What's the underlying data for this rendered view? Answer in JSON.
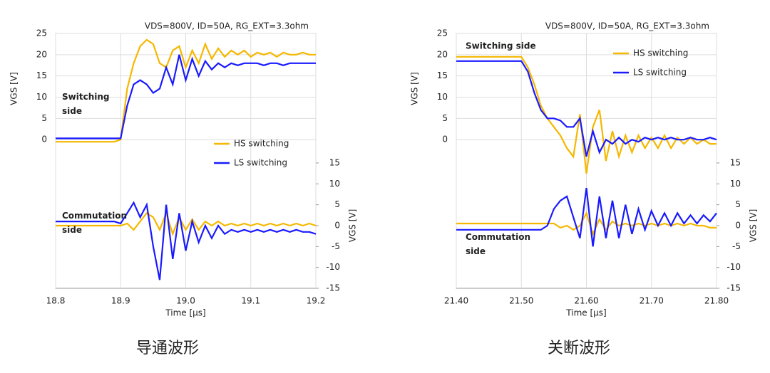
{
  "chart_data": [
    {
      "type": "line",
      "title": "VDS=800V, ID=50A, RG_EXT=3.3ohm",
      "x_label": "Time [µs]",
      "y_label": "VGS  [V]",
      "y2_label": "VGS  [V]",
      "caption": "导通波形",
      "annotations": [
        {
          "text": [
            "Switching",
            "side"
          ],
          "y": 10
        },
        {
          "text": [
            "Commutation",
            "side"
          ],
          "y": -18
        }
      ],
      "x": [
        18.8,
        18.81,
        18.82,
        18.83,
        18.84,
        18.85,
        18.86,
        18.87,
        18.88,
        18.89,
        18.9,
        18.91,
        18.92,
        18.93,
        18.94,
        18.95,
        18.96,
        18.97,
        18.98,
        18.99,
        19,
        19.01,
        19.02,
        19.03,
        19.04,
        19.05,
        19.06,
        19.07,
        19.08,
        19.09,
        19.1,
        19.11,
        19.12,
        19.13,
        19.14,
        19.15,
        19.16,
        19.17,
        19.18,
        19.19,
        19.2
      ],
      "xlim": [
        18.8,
        19.2
      ],
      "xticks": [
        18.8,
        18.9,
        {
          "value": 19,
          "label": "19.0"
        },
        19.1,
        19.2
      ],
      "ylim": [
        -35,
        25
      ],
      "yticks": [
        0,
        5,
        10,
        15,
        20,
        25
      ],
      "y2lim": [
        -15,
        46
      ],
      "y2ticks": [
        -15,
        -10,
        -5,
        0,
        5,
        10,
        15
      ],
      "grid": true,
      "series": [
        {
          "name": "HS switching",
          "color": "#f5b800",
          "values": [
            -0.5,
            -0.5,
            -0.5,
            -0.5,
            -0.5,
            -0.5,
            -0.5,
            -0.5,
            -0.5,
            -0.5,
            0,
            12,
            18,
            22,
            23.5,
            22.5,
            18,
            17,
            21,
            22,
            17,
            21,
            18,
            22.5,
            19,
            21.5,
            19.5,
            21,
            20,
            21,
            19.5,
            20.5,
            20,
            20.5,
            19.5,
            20.5,
            20,
            20,
            20.5,
            20,
            20
          ],
          "commutation_values": [
            0,
            0,
            0,
            0,
            0,
            0,
            0,
            0,
            0,
            0,
            0,
            0.5,
            -1,
            1,
            3,
            2,
            -1,
            3,
            -2,
            2,
            -1,
            1.5,
            -1,
            1,
            0,
            1,
            0,
            0.5,
            0,
            0.5,
            0,
            0.5,
            0,
            0.5,
            0,
            0.5,
            0,
            0.5,
            0,
            0.5,
            0
          ]
        },
        {
          "name": "LS switching",
          "color": "#1a1aff",
          "values": [
            0.3,
            0.3,
            0.3,
            0.3,
            0.3,
            0.3,
            0.3,
            0.3,
            0.3,
            0.3,
            0.3,
            8,
            13,
            14,
            13,
            11,
            12,
            17,
            13,
            20,
            14,
            19,
            15,
            18.5,
            16.5,
            18,
            17,
            18,
            17.5,
            18,
            18,
            18,
            17.5,
            18,
            18,
            17.5,
            18,
            18,
            18,
            18,
            18
          ],
          "commutation_values": [
            1,
            1,
            1,
            1,
            1,
            1,
            1,
            1,
            1,
            1,
            0.5,
            3,
            5.5,
            2,
            5,
            -5,
            -13,
            5,
            -8,
            3,
            -6,
            1,
            -4,
            0,
            -3,
            0,
            -2,
            -1,
            -1.5,
            -1,
            -1.5,
            -1,
            -1.5,
            -1,
            -1.5,
            -1,
            -1.5,
            -1,
            -1.5,
            -1.5,
            -2
          ]
        }
      ]
    },
    {
      "type": "line",
      "title": "VDS=800V, ID=50A, RG_EXT=3.3ohm",
      "x_label": "Time [µs]",
      "y_label": "VGS  [V]",
      "y2_label": "VGS  [V]",
      "caption": "关断波形",
      "annotations": [
        {
          "text": [
            "Switching side"
          ],
          "y": 22
        },
        {
          "text": [
            "Commutation",
            "side"
          ],
          "y": -23
        }
      ],
      "x": [
        21.4,
        21.41,
        21.42,
        21.43,
        21.44,
        21.45,
        21.46,
        21.47,
        21.48,
        21.49,
        21.5,
        21.51,
        21.52,
        21.53,
        21.54,
        21.55,
        21.56,
        21.57,
        21.58,
        21.59,
        21.6,
        21.61,
        21.62,
        21.63,
        21.64,
        21.65,
        21.66,
        21.67,
        21.68,
        21.69,
        21.7,
        21.71,
        21.72,
        21.73,
        21.74,
        21.75,
        21.76,
        21.77,
        21.78,
        21.79,
        21.8
      ],
      "xlim": [
        21.4,
        21.8
      ],
      "xticks": [
        {
          "value": 21.4,
          "label": "21.40"
        },
        {
          "value": 21.5,
          "label": "21.50"
        },
        {
          "value": 21.6,
          "label": "21.60"
        },
        {
          "value": 21.7,
          "label": "21.70"
        },
        {
          "value": 21.8,
          "label": "21.80"
        }
      ],
      "ylim": [
        -35,
        25
      ],
      "yticks": [
        0,
        5,
        10,
        15,
        20,
        25
      ],
      "y2lim": [
        -15,
        46
      ],
      "y2ticks": [
        -15,
        -10,
        -5,
        0,
        5,
        10,
        15
      ],
      "grid": true,
      "series": [
        {
          "name": "HS switching",
          "color": "#f5b800",
          "values": [
            19.5,
            19.5,
            19.5,
            19.5,
            19.5,
            19.5,
            19.5,
            19.5,
            19.5,
            19.5,
            19.5,
            17,
            13,
            8,
            5,
            3,
            1,
            -2,
            -4,
            6,
            -8,
            3,
            7,
            -5,
            2,
            -4,
            1,
            -3,
            1,
            -2,
            0.5,
            -2,
            1,
            -2,
            0.5,
            -1,
            0.5,
            -1,
            0,
            -1,
            -1
          ],
          "commutation_values": [
            0.5,
            0.5,
            0.5,
            0.5,
            0.5,
            0.5,
            0.5,
            0.5,
            0.5,
            0.5,
            0.5,
            0.5,
            0.5,
            0.5,
            0.5,
            0.5,
            -0.5,
            0,
            -1,
            0,
            3,
            -2,
            1.5,
            -1,
            1,
            0,
            0.5,
            0,
            0.5,
            0,
            0.5,
            0,
            0.5,
            0,
            0.5,
            0,
            0.5,
            0,
            0,
            -0.5,
            -0.5
          ]
        },
        {
          "name": "LS switching",
          "color": "#1a1aff",
          "values": [
            18.5,
            18.5,
            18.5,
            18.5,
            18.5,
            18.5,
            18.5,
            18.5,
            18.5,
            18.5,
            18.5,
            16,
            11,
            7,
            5,
            5,
            4.5,
            3,
            3,
            5,
            -4,
            2,
            -3,
            0,
            -1,
            0.5,
            -1,
            0,
            -0.5,
            0.5,
            0,
            0.5,
            0,
            0.5,
            0,
            0,
            0.5,
            0,
            0,
            0.5,
            0
          ],
          "commutation_values": [
            -1,
            -1,
            -1,
            -1,
            -1,
            -1,
            -1,
            -1,
            -1,
            -1,
            -1,
            -1,
            -1,
            -1,
            0,
            4,
            6,
            7,
            2,
            -3,
            9,
            -5,
            7,
            -3,
            6,
            -3,
            5,
            -2,
            4,
            -1,
            3.5,
            0,
            3,
            0,
            3,
            0.5,
            2.5,
            0.5,
            2.5,
            1,
            3
          ]
        }
      ]
    }
  ]
}
